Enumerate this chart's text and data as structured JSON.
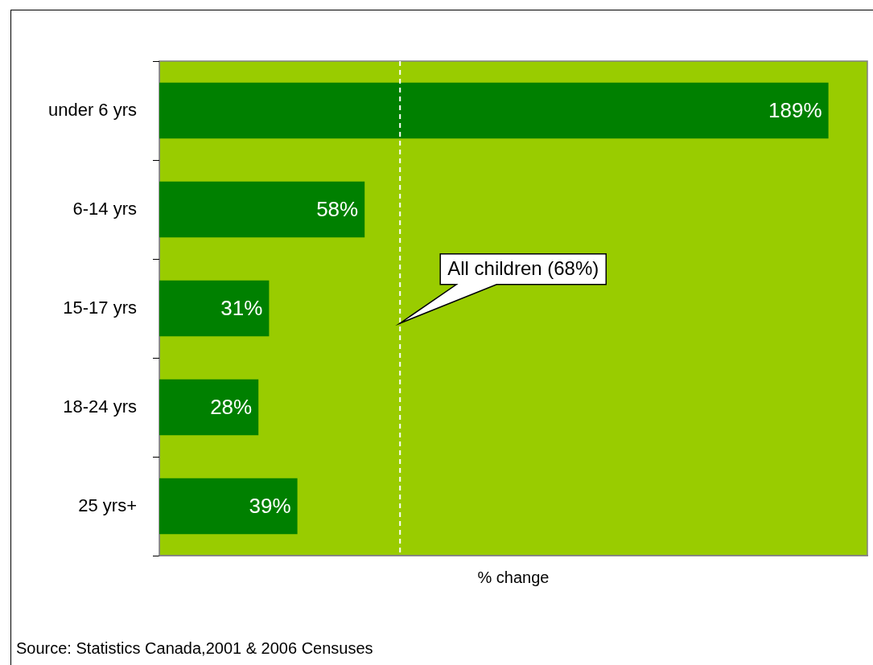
{
  "chart_data": {
    "type": "bar",
    "orientation": "horizontal",
    "xlabel": "% change",
    "categories": [
      "under 6 yrs",
      "6-14 yrs",
      "15-17 yrs",
      "18-24 yrs",
      "25 yrs+"
    ],
    "values": [
      189,
      58,
      31,
      28,
      39
    ],
    "value_labels": [
      "189%",
      "58%",
      "31%",
      "28%",
      "39%"
    ],
    "color": "#008000",
    "xlim": [
      0,
      200
    ],
    "tick_labels": "y",
    "grid": false,
    "legend": false,
    "ref_lines": [
      {
        "axis": "x",
        "value": 68,
        "label": "All children (68%)",
        "color": "#ffffff",
        "line_style": "dashed"
      }
    ],
    "annotations": [
      "Source: Statistics Canada,2001 & 2006 Censuses"
    ]
  }
}
